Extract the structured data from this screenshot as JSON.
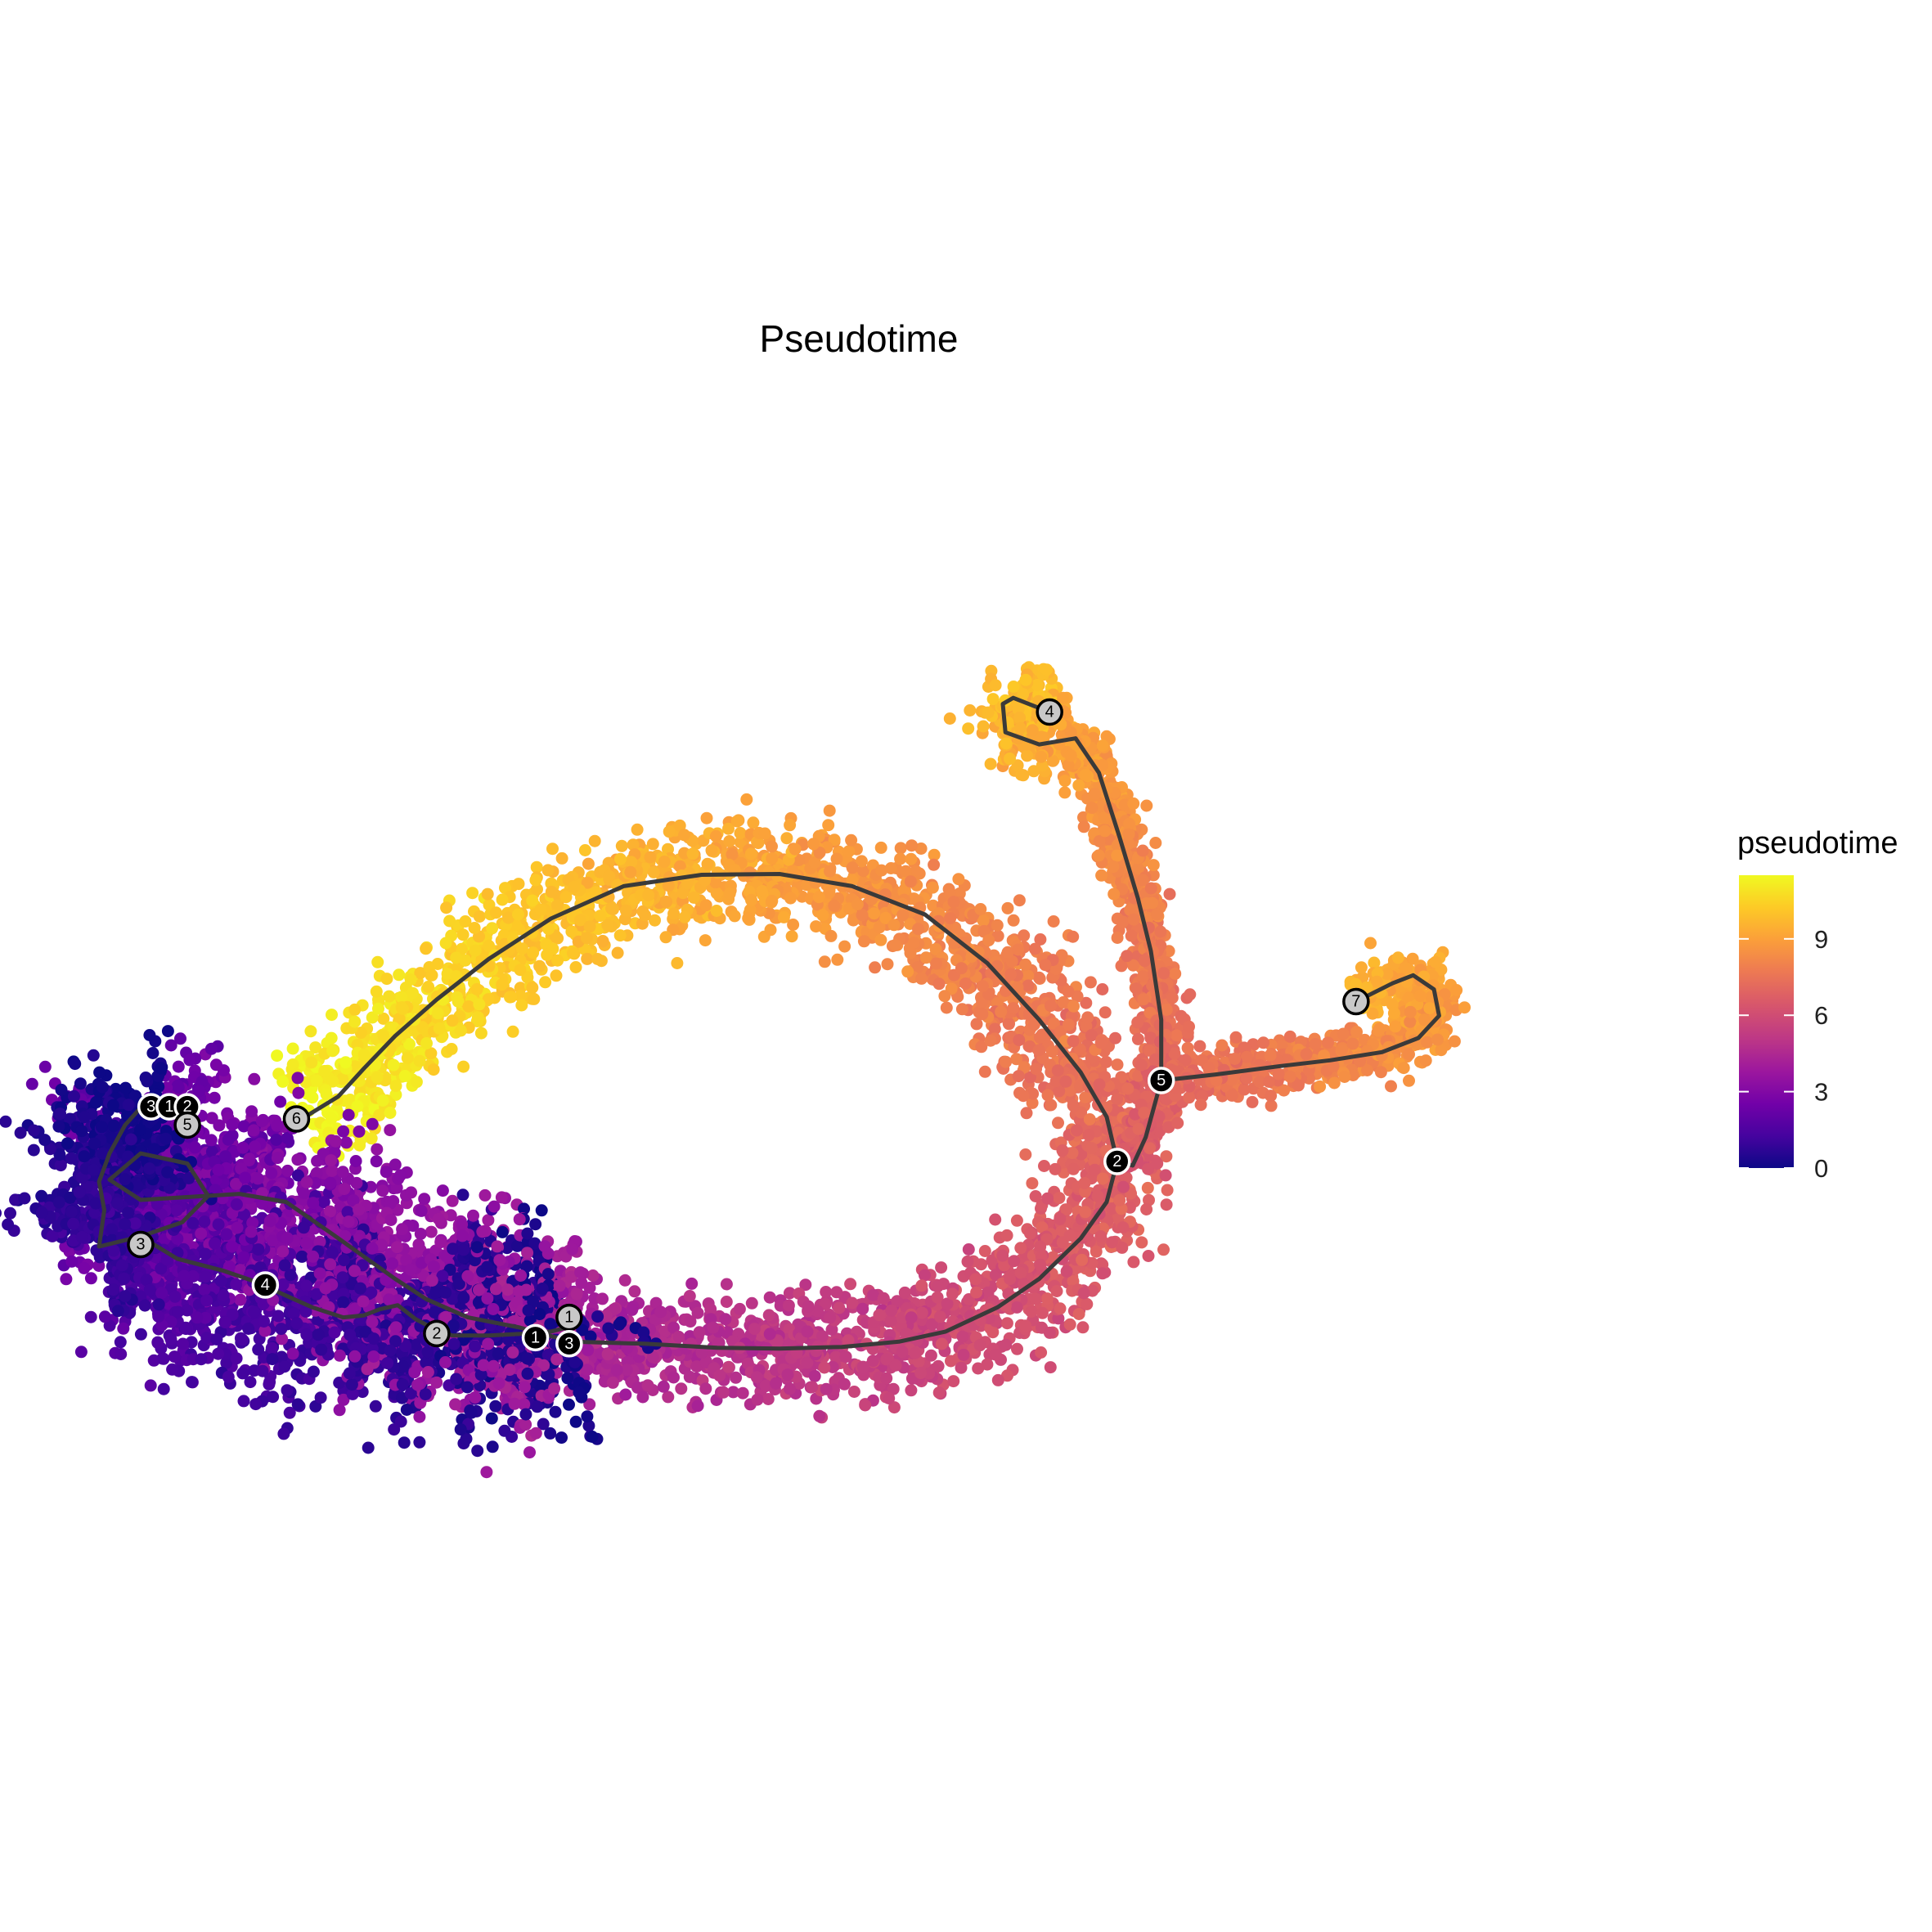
{
  "chart_data": {
    "type": "scatter",
    "title": "Pseudotime",
    "xlabel": "",
    "ylabel": "",
    "grid": false,
    "legend": {
      "title": "pseudotime",
      "placement": "right",
      "ticks": [
        "0",
        "3",
        "6",
        "9"
      ],
      "range": [
        0,
        11.5
      ]
    },
    "colorscale": [
      "#0d0887",
      "#46039f",
      "#7201a8",
      "#9c179e",
      "#bd3786",
      "#d8576b",
      "#ed7953",
      "#fb9f3a",
      "#fdca26",
      "#f0f921"
    ],
    "trajectory_color": "#3a3a3a",
    "trajectory": [
      {
        "name": "main",
        "points": [
          [
            -6.0,
            -4.45
          ],
          [
            -4.6,
            -4.5
          ],
          [
            -3.2,
            -4.6
          ],
          [
            -2.0,
            -4.62
          ],
          [
            -0.8,
            -4.58
          ],
          [
            0.3,
            -4.45
          ],
          [
            1.2,
            -4.2
          ],
          [
            2.2,
            -3.6
          ],
          [
            3.0,
            -2.9
          ],
          [
            3.8,
            -1.9
          ],
          [
            4.3,
            -1.0
          ],
          [
            4.5,
            0.0
          ],
          [
            4.3,
            1.1
          ],
          [
            3.8,
            2.2
          ],
          [
            3.0,
            3.5
          ],
          [
            2.0,
            4.9
          ],
          [
            0.8,
            6.1
          ],
          [
            -0.6,
            6.8
          ],
          [
            -2.0,
            7.1
          ],
          [
            -3.5,
            7.08
          ],
          [
            -5.0,
            6.8
          ],
          [
            -6.4,
            6.0
          ],
          [
            -7.6,
            5.0
          ],
          [
            -8.6,
            4.0
          ],
          [
            -9.4,
            3.1
          ],
          [
            -10.0,
            2.3
          ],
          [
            -10.5,
            1.6
          ],
          [
            -11.2,
            1.05
          ]
        ]
      },
      {
        "name": "to-branch-5",
        "points": [
          [
            4.5,
            0.0
          ],
          [
            4.8,
            -0.1
          ],
          [
            5.05,
            0.6
          ],
          [
            5.35,
            2.0
          ],
          [
            5.35,
            3.5
          ],
          [
            5.15,
            5.2
          ],
          [
            4.9,
            6.5
          ],
          [
            4.55,
            8.0
          ],
          [
            4.15,
            9.6
          ],
          [
            3.7,
            10.45
          ]
        ]
      },
      {
        "name": "to-node-4",
        "points": [
          [
            3.7,
            10.45
          ],
          [
            3.0,
            10.3
          ],
          [
            2.35,
            10.6
          ],
          [
            2.3,
            11.3
          ],
          [
            2.5,
            11.45
          ],
          [
            3.2,
            11.1
          ]
        ]
      },
      {
        "name": "to-node-7",
        "points": [
          [
            5.35,
            2.0
          ],
          [
            6.4,
            2.15
          ],
          [
            7.6,
            2.35
          ],
          [
            8.6,
            2.5
          ],
          [
            9.6,
            2.7
          ],
          [
            10.3,
            3.05
          ],
          [
            10.7,
            3.6
          ],
          [
            10.6,
            4.25
          ],
          [
            10.2,
            4.6
          ],
          [
            9.8,
            4.4
          ],
          [
            9.1,
            3.95
          ]
        ]
      },
      {
        "name": "left-loop",
        "points": [
          [
            -6.0,
            -4.45
          ],
          [
            -7.0,
            -4.1
          ],
          [
            -8.0,
            -3.85
          ],
          [
            -8.8,
            -3.4
          ],
          [
            -9.4,
            -2.9
          ],
          [
            -10.6,
            -1.8
          ],
          [
            -11.5,
            -1.0
          ],
          [
            -12.4,
            -0.8
          ],
          [
            -14.3,
            -0.95
          ],
          [
            -14.9,
            -0.45
          ],
          [
            -14.3,
            0.2
          ],
          [
            -13.4,
            -0.05
          ],
          [
            -13.0,
            -0.85
          ],
          [
            -13.5,
            -1.5
          ],
          [
            -14.3,
            -1.85
          ],
          [
            -13.6,
            -2.4
          ],
          [
            -12.7,
            -2.7
          ],
          [
            -11.9,
            -3.05
          ],
          [
            -11.7,
            -3.2
          ],
          [
            -11.0,
            -3.6
          ],
          [
            -10.4,
            -3.85
          ],
          [
            -10.0,
            -3.8
          ],
          [
            -9.7,
            -3.65
          ],
          [
            -9.35,
            -3.55
          ],
          [
            -9.0,
            -3.9
          ],
          [
            -8.7,
            -4.1
          ],
          [
            -8.3,
            -4.3
          ],
          [
            -7.6,
            -4.3
          ],
          [
            -6.9,
            -4.25
          ],
          [
            -6.4,
            -4.2
          ],
          [
            -6.1,
            -4.1
          ],
          [
            -6.05,
            -3.8
          ]
        ]
      },
      {
        "name": "left-upper",
        "points": [
          [
            -14.3,
            -1.85
          ],
          [
            -15.1,
            -2.1
          ],
          [
            -15.0,
            -1.2
          ],
          [
            -15.1,
            -0.5
          ],
          [
            -14.9,
            0.2
          ],
          [
            -14.6,
            0.9
          ],
          [
            -14.25,
            1.4
          ],
          [
            -14.0,
            1.35
          ]
        ]
      }
    ],
    "nodes": [
      {
        "label": "1",
        "x": -6.05,
        "y": -3.85,
        "kind": "root"
      },
      {
        "label": "1",
        "x": -6.7,
        "y": -4.35,
        "kind": "branch"
      },
      {
        "label": "3",
        "x": -6.05,
        "y": -4.5,
        "kind": "branch"
      },
      {
        "label": "2",
        "x": -8.6,
        "y": -4.25,
        "kind": "root"
      },
      {
        "label": "4",
        "x": -11.9,
        "y": -3.05,
        "kind": "branch"
      },
      {
        "label": "3",
        "x": -14.3,
        "y": -2.05,
        "kind": "root"
      },
      {
        "label": "3",
        "x": -14.1,
        "y": 1.35,
        "kind": "branch"
      },
      {
        "label": "1",
        "x": -13.75,
        "y": 1.35,
        "kind": "branch"
      },
      {
        "label": "2",
        "x": -13.4,
        "y": 1.35,
        "kind": "branch"
      },
      {
        "label": "5",
        "x": -13.4,
        "y": 0.9,
        "kind": "root"
      },
      {
        "label": "6",
        "x": -11.3,
        "y": 1.05,
        "kind": "root"
      },
      {
        "label": "2",
        "x": 4.5,
        "y": 0.0,
        "kind": "branch"
      },
      {
        "label": "5",
        "x": 5.35,
        "y": 2.0,
        "kind": "branch"
      },
      {
        "label": "4",
        "x": 3.2,
        "y": 11.1,
        "kind": "root"
      },
      {
        "label": "7",
        "x": 9.1,
        "y": 3.95,
        "kind": "root"
      }
    ]
  }
}
